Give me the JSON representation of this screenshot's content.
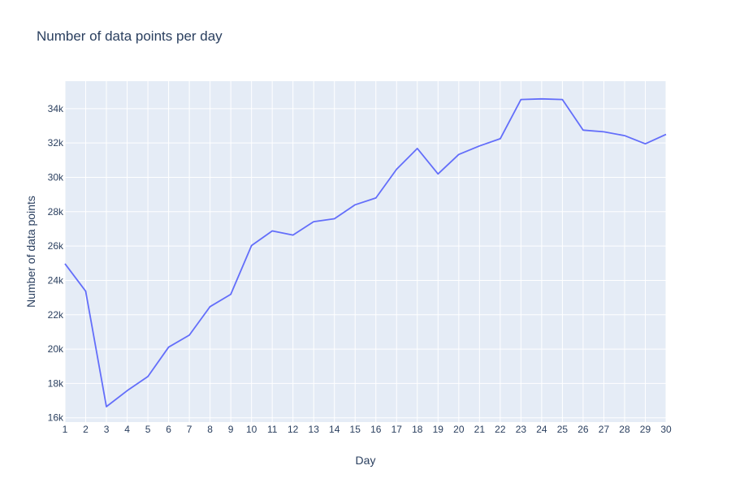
{
  "chart_data": {
    "type": "line",
    "title": "Number of data points per day",
    "xlabel": "Day",
    "ylabel": "Number of data points",
    "x": [
      1,
      2,
      3,
      4,
      5,
      6,
      7,
      8,
      9,
      10,
      11,
      12,
      13,
      14,
      15,
      16,
      17,
      18,
      19,
      20,
      21,
      22,
      23,
      24,
      25,
      26,
      27,
      28,
      29,
      30
    ],
    "series": [
      {
        "name": "",
        "color": "#636efa",
        "values": [
          24970,
          23370,
          16650,
          17580,
          18400,
          20110,
          20810,
          22470,
          23190,
          26030,
          26880,
          26640,
          27420,
          27590,
          28400,
          28800,
          30470,
          31680,
          30200,
          31330,
          31830,
          32250,
          34530,
          34570,
          34530,
          32750,
          32650,
          32430,
          31950,
          32500
        ]
      }
    ],
    "xlim": [
      1,
      30
    ],
    "ylim": [
      15750,
      35600
    ],
    "y_ticks": [
      16000,
      18000,
      20000,
      22000,
      24000,
      26000,
      28000,
      30000,
      32000,
      34000
    ],
    "y_tick_labels": [
      "16k",
      "18k",
      "20k",
      "22k",
      "24k",
      "26k",
      "28k",
      "30k",
      "32k",
      "34k"
    ],
    "grid": true,
    "plot_background": "#e5ecf6",
    "grid_color": "#ffffff",
    "text_color": "#2a3f5f"
  }
}
